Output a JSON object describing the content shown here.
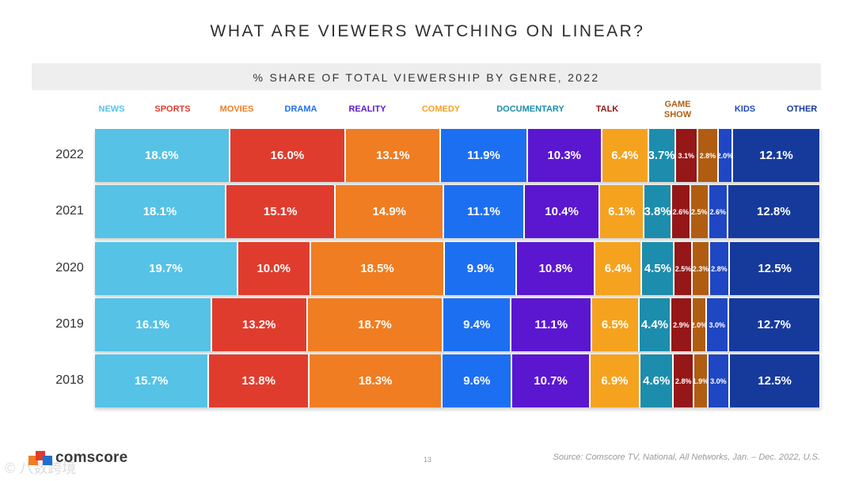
{
  "page": {
    "page_number": "13",
    "source": "Source: Comscore TV, National, All Networks, Jan. – Dec. 2022, U.S.",
    "logo_text": "comscore",
    "watermark": "© 八数跨境"
  },
  "colors": {
    "NEWS": "#55c2e6",
    "SPORTS": "#e03c2e",
    "MOVIES": "#f07d22",
    "DRAMA": "#1d6ff2",
    "REALITY": "#5b17d0",
    "COMEDY": "#f5a21f",
    "DOCUMENTARY": "#1c8dad",
    "TALK": "#951717",
    "GAME SHOW": "#b05d12",
    "KIDS": "#1f47c3",
    "OTHER": "#163a9c"
  },
  "chart_data": {
    "type": "bar",
    "stacked": "100%",
    "orientation": "horizontal",
    "title": "WHAT ARE VIEWERS WATCHING ON LINEAR?",
    "subtitle": "% SHARE OF TOTAL VIEWERSHIP BY GENRE, 2022",
    "legend_placement": "top",
    "categories": [
      "2022",
      "2021",
      "2020",
      "2019",
      "2018"
    ],
    "series": [
      {
        "name": "NEWS",
        "values": [
          18.6,
          18.1,
          19.7,
          16.1,
          15.7
        ],
        "labels": [
          "18.6%",
          "18.1%",
          "19.7%",
          "16.1%",
          "15.7%"
        ]
      },
      {
        "name": "SPORTS",
        "values": [
          16.0,
          15.1,
          10.0,
          13.2,
          13.8
        ],
        "labels": [
          "16.0%",
          "15.1%",
          "10.0%",
          "13.2%",
          "13.8%"
        ]
      },
      {
        "name": "MOVIES",
        "values": [
          13.1,
          14.9,
          18.5,
          18.7,
          18.3
        ],
        "labels": [
          "13.1%",
          "14.9%",
          "18.5%",
          "18.7%",
          "18.3%"
        ]
      },
      {
        "name": "DRAMA",
        "values": [
          11.9,
          11.1,
          9.9,
          9.4,
          9.6
        ],
        "labels": [
          "11.9%",
          "11.1%",
          "9.9%",
          "9.4%",
          "9.6%"
        ]
      },
      {
        "name": "REALITY",
        "values": [
          10.3,
          10.4,
          10.8,
          11.1,
          10.7
        ],
        "labels": [
          "10.3%",
          "10.4%",
          "10.8%",
          "11.1%",
          "10.7%"
        ]
      },
      {
        "name": "COMEDY",
        "values": [
          6.4,
          6.1,
          6.4,
          6.5,
          6.9
        ],
        "labels": [
          "6.4%",
          "6.1%",
          "6.4%",
          "6.5%",
          "6.9%"
        ]
      },
      {
        "name": "DOCUMENTARY",
        "values": [
          3.7,
          3.8,
          4.5,
          4.4,
          4.6
        ],
        "labels": [
          "3.7%",
          "3.8%",
          "4.5%",
          "4.4%",
          "4.6%"
        ]
      },
      {
        "name": "TALK",
        "values": [
          3.1,
          2.6,
          2.5,
          2.9,
          2.8
        ],
        "labels": [
          "3.1%",
          "2.6%",
          "2.5%",
          "2.9%",
          "2.8%"
        ]
      },
      {
        "name": "GAME SHOW",
        "values": [
          2.8,
          2.5,
          2.3,
          2.0,
          1.9
        ],
        "labels": [
          "2.8%",
          "2.5%",
          "2.3%",
          "2.0%",
          "1.9%"
        ]
      },
      {
        "name": "KIDS",
        "values": [
          2.0,
          2.6,
          2.8,
          3.0,
          3.0
        ],
        "labels": [
          "2.0%",
          "2.6%",
          "2.8%",
          "3.0%",
          "3.0%"
        ]
      },
      {
        "name": "OTHER",
        "values": [
          12.1,
          12.8,
          12.5,
          12.7,
          12.5
        ],
        "labels": [
          "12.1%",
          "12.8%",
          "12.5%",
          "12.7%",
          "12.5%"
        ]
      }
    ]
  }
}
